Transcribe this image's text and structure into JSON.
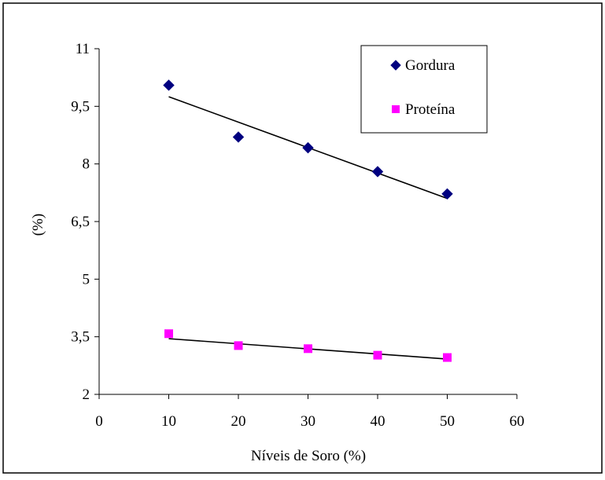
{
  "chart_data": {
    "type": "scatter",
    "title": "",
    "xlabel": "Níveis de Soro (%)",
    "ylabel": "(%)",
    "xlim": [
      0,
      60
    ],
    "ylim": [
      2,
      11
    ],
    "x_ticks": [
      0,
      10,
      20,
      30,
      40,
      50,
      60
    ],
    "x_tick_labels": [
      "0",
      "10",
      "20",
      "30",
      "40",
      "50",
      "60"
    ],
    "y_ticks": [
      2,
      3.5,
      5,
      6.5,
      8,
      9.5,
      11
    ],
    "y_tick_labels": [
      "2",
      "3,5",
      "5",
      "6,5",
      "8",
      "9,5",
      "11"
    ],
    "grid": false,
    "legend_position": "top-right",
    "series": [
      {
        "name": "Gordura",
        "marker": "diamond",
        "color": "#000080",
        "x": [
          10,
          20,
          30,
          40,
          50
        ],
        "y": [
          10.05,
          8.7,
          8.42,
          7.8,
          7.22
        ],
        "trendline": {
          "x": [
            10,
            50
          ],
          "y": [
            9.75,
            7.1
          ]
        }
      },
      {
        "name": "Proteína",
        "marker": "square",
        "color": "#ff00ff",
        "x": [
          10,
          20,
          30,
          40,
          50
        ],
        "y": [
          3.58,
          3.27,
          3.19,
          3.02,
          2.96
        ],
        "trendline": {
          "x": [
            10,
            50
          ],
          "y": [
            3.45,
            2.92
          ]
        }
      }
    ]
  }
}
